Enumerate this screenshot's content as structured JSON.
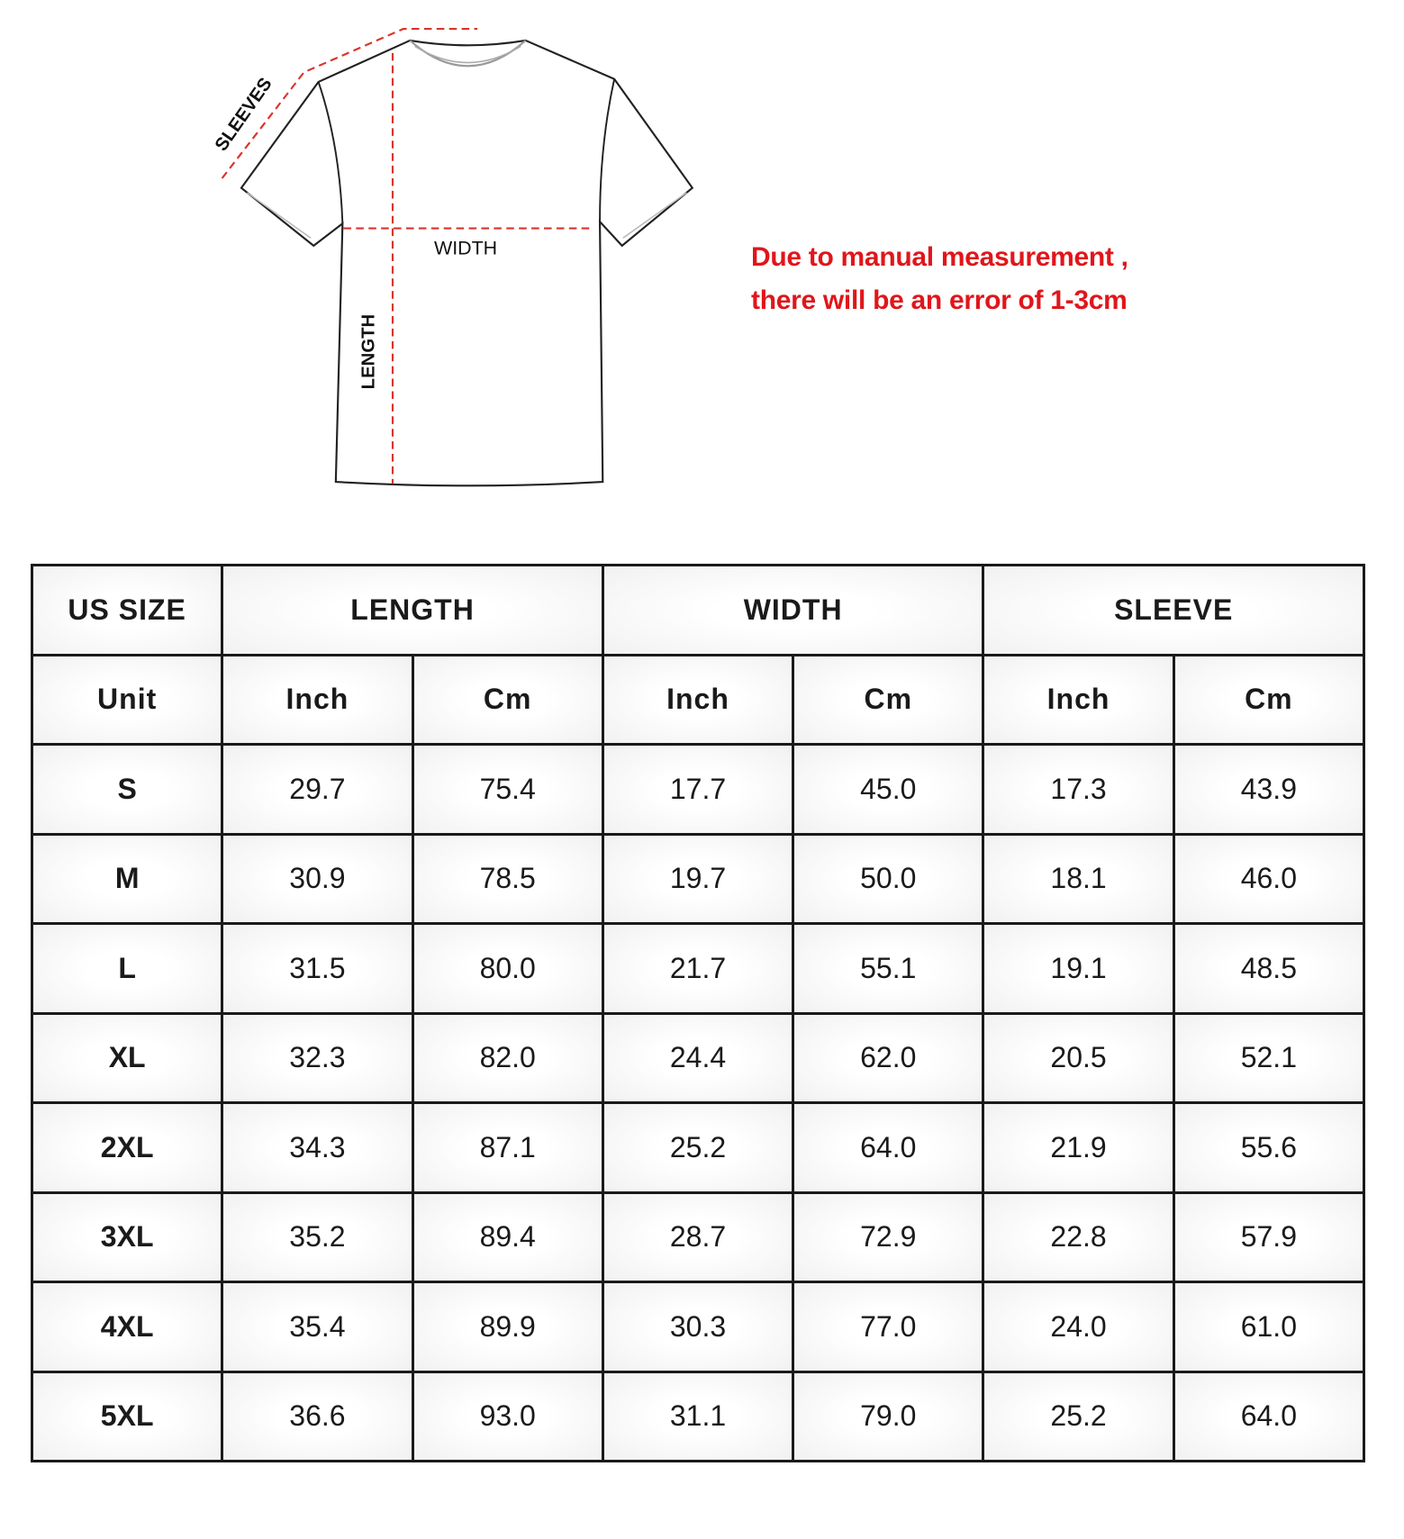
{
  "diagram": {
    "labels": {
      "sleeves": "SLEEVES",
      "width": "WIDTH",
      "length": "LENGTH"
    },
    "colors": {
      "measure_line": "#d9342b",
      "outline": "#222222"
    }
  },
  "note": {
    "line1": "Due to manual measurement ,",
    "line2": "there will be an error of 1-3cm",
    "color": "#e0161b"
  },
  "table": {
    "header": {
      "size": "US SIZE",
      "length": "LENGTH",
      "width": "WIDTH",
      "sleeve": "SLEEVE"
    },
    "units": [
      "Unit",
      "Inch",
      "Cm",
      "Inch",
      "Cm",
      "Inch",
      "Cm"
    ],
    "rows": [
      [
        "S",
        "29.7",
        "75.4",
        "17.7",
        "45.0",
        "17.3",
        "43.9"
      ],
      [
        "M",
        "30.9",
        "78.5",
        "19.7",
        "50.0",
        "18.1",
        "46.0"
      ],
      [
        "L",
        "31.5",
        "80.0",
        "21.7",
        "55.1",
        "19.1",
        "48.5"
      ],
      [
        "XL",
        "32.3",
        "82.0",
        "24.4",
        "62.0",
        "20.5",
        "52.1"
      ],
      [
        "2XL",
        "34.3",
        "87.1",
        "25.2",
        "64.0",
        "21.9",
        "55.6"
      ],
      [
        "3XL",
        "35.2",
        "89.4",
        "28.7",
        "72.9",
        "22.8",
        "57.9"
      ],
      [
        "4XL",
        "35.4",
        "89.9",
        "30.3",
        "77.0",
        "24.0",
        "61.0"
      ],
      [
        "5XL",
        "36.6",
        "93.0",
        "31.1",
        "79.0",
        "25.2",
        "64.0"
      ]
    ]
  }
}
